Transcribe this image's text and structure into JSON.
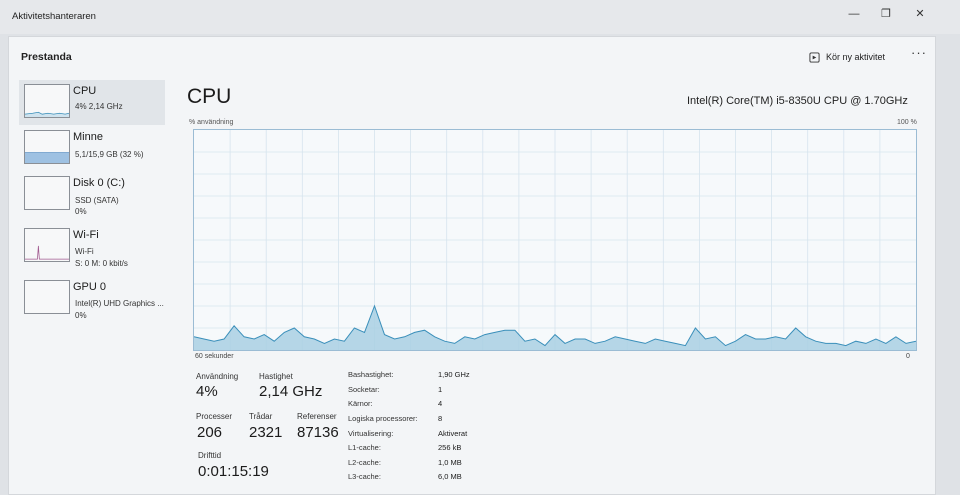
{
  "app_title": "Aktivitetshanteraren",
  "window_controls": {
    "minimize": "—",
    "maximize": "❐",
    "close": "✕"
  },
  "header": {
    "title": "Prestanda",
    "new_task": "Kör ny aktivitet",
    "more": "···"
  },
  "sidebar": {
    "items": [
      {
        "name": "CPU",
        "line1": "4% 2,14 GHz",
        "line2": ""
      },
      {
        "name": "Minne",
        "line1": "5,1/15,9 GB (32 %)",
        "line2": ""
      },
      {
        "name": "Disk 0 (C:)",
        "line1": "SSD (SATA)",
        "line2": "0%"
      },
      {
        "name": "Wi-Fi",
        "line1": "Wi-Fi",
        "line2": "S: 0 M: 0 kbit/s"
      },
      {
        "name": "GPU 0",
        "line1": "Intel(R) UHD Graphics ...",
        "line2": "0%"
      }
    ]
  },
  "main": {
    "title": "CPU",
    "model": "Intel(R) Core(TM) i5-8350U CPU @ 1.70GHz",
    "graph": {
      "y_label": "% användning",
      "y_max": "100 %",
      "x_left": "60 sekunder",
      "x_right": "0",
      "usage_history": [
        6,
        5,
        4,
        5,
        11,
        6,
        5,
        7,
        4,
        8,
        10,
        6,
        5,
        3,
        5,
        4,
        10,
        8,
        20,
        7,
        5,
        6,
        8,
        9,
        6,
        4,
        3,
        6,
        5,
        7,
        8,
        9,
        9,
        4,
        5,
        2,
        7,
        3,
        5,
        5,
        3,
        4,
        6,
        5,
        4,
        3,
        5,
        4,
        3,
        2,
        10,
        5,
        6,
        2,
        4,
        7,
        5,
        5,
        6,
        5,
        10,
        6,
        4,
        3,
        3,
        2,
        4,
        3,
        5,
        3,
        6,
        3,
        4
      ]
    },
    "stats": {
      "usage_label": "Användning",
      "usage_value": "4%",
      "speed_label": "Hastighet",
      "speed_value": "2,14 GHz",
      "processes_label": "Processer",
      "processes_value": "206",
      "threads_label": "Trådar",
      "threads_value": "2321",
      "handles_label": "Referenser",
      "handles_value": "87136",
      "uptime_label": "Drifttid",
      "uptime_value": "0:01:15:19"
    },
    "details": [
      {
        "label": "Bashastighet:",
        "value": "1,90 GHz"
      },
      {
        "label": "Socketar:",
        "value": "1"
      },
      {
        "label": "Kärnor:",
        "value": "4"
      },
      {
        "label": "Logiska processorer:",
        "value": "8"
      },
      {
        "label": "Virtualisering:",
        "value": "Aktiverat"
      },
      {
        "label": "L1-cache:",
        "value": "256 kB"
      },
      {
        "label": "L2-cache:",
        "value": "1,0 MB"
      },
      {
        "label": "L3-cache:",
        "value": "6,0 MB"
      }
    ]
  },
  "colors": {
    "graph_fill": "#a9d0e3",
    "graph_line": "#3a8fba",
    "graph_border": "#9bbcd4",
    "memory_fill": "#9ec1e2",
    "selected_bg": "#e1e5e9"
  }
}
